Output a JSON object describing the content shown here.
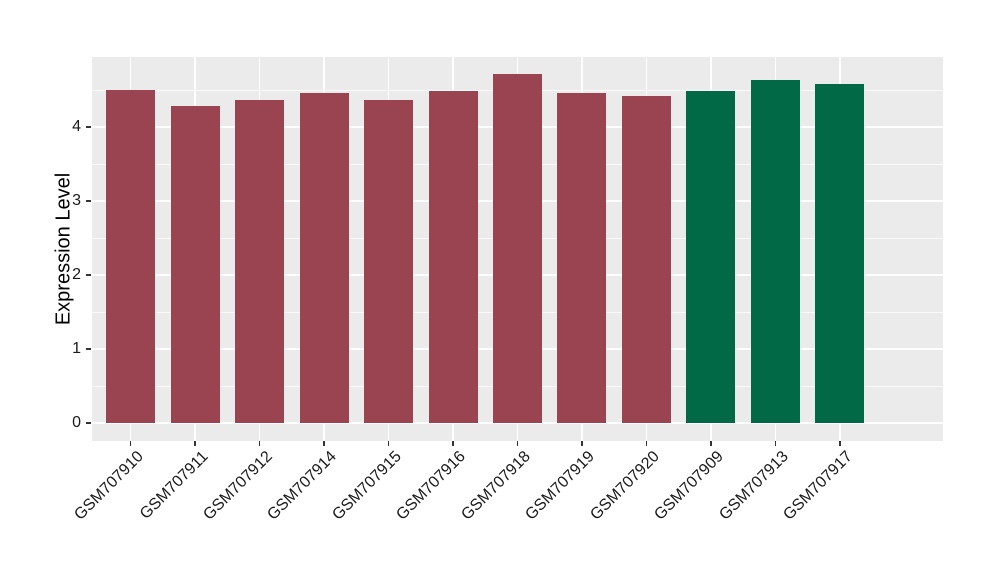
{
  "chart_data": {
    "type": "bar",
    "title": "",
    "xlabel": "",
    "ylabel": "Expression Level",
    "categories": [
      "GSM707910",
      "GSM707911",
      "GSM707912",
      "GSM707914",
      "GSM707915",
      "GSM707916",
      "GSM707918",
      "GSM707919",
      "GSM707920",
      "GSM707909",
      "GSM707913",
      "GSM707917"
    ],
    "values": [
      4.5,
      4.29,
      4.36,
      4.46,
      4.37,
      4.49,
      4.72,
      4.46,
      4.42,
      4.49,
      4.64,
      4.58
    ],
    "bar_groups": [
      "group1",
      "group1",
      "group1",
      "group1",
      "group1",
      "group1",
      "group1",
      "group1",
      "group1",
      "group2",
      "group2",
      "group2"
    ],
    "group_colors": {
      "group1": "#9B4451",
      "group2": "#026947"
    },
    "yticks": [
      0,
      1,
      2,
      3,
      4
    ],
    "minor_yticks": [
      0.5,
      1.5,
      2.5,
      3.5,
      4.5
    ],
    "ylim": [
      -0.24,
      4.95
    ],
    "grid": true,
    "legend": "none",
    "panel_bg": "#EBEBEB",
    "grid_color": "#FFFFFF",
    "x_label_rotation": 45
  }
}
